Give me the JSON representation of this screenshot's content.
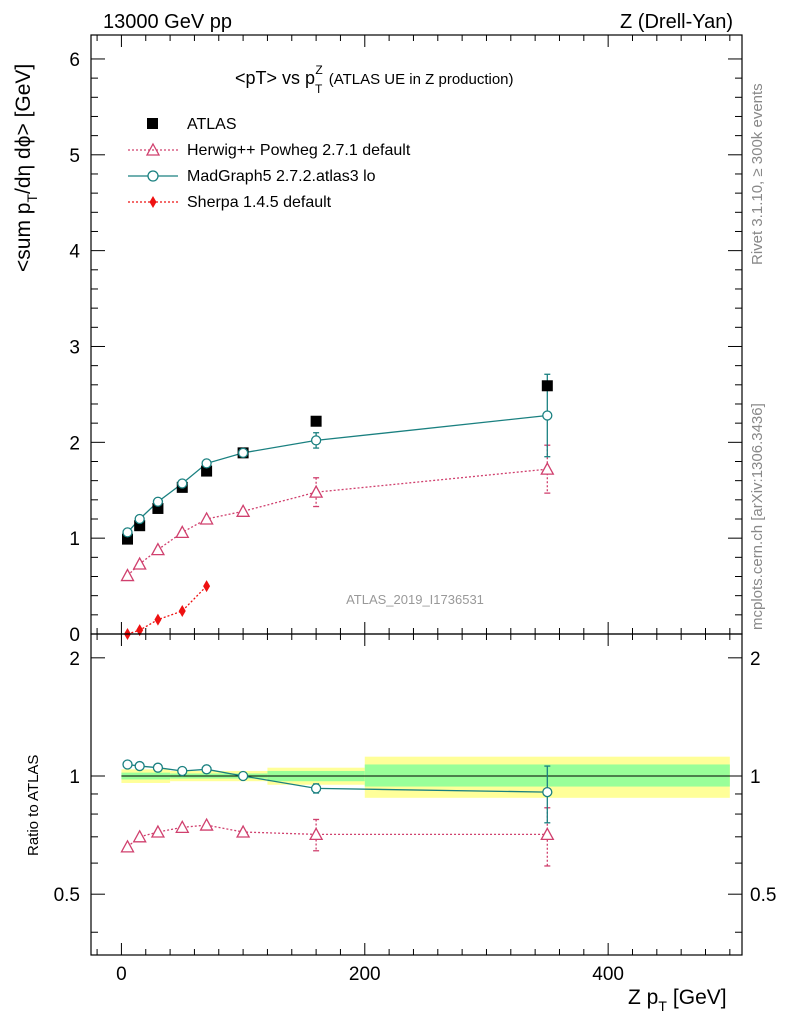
{
  "header": {
    "left": "13000 GeV pp",
    "right": "Z (Drell-Yan)"
  },
  "side_labels": {
    "rivet": "Rivet 3.1.10, ≥ 300k events",
    "mcplots": "mcplots.cern.ch [arXiv:1306.3436]"
  },
  "chart_data": {
    "type": "scatter",
    "title": "<pT> vs p",
    "title_sup": "Z",
    "title_sub": "T",
    "title_rest": "(ATLAS UE in Z production)",
    "ylabel_main": "<sum p",
    "ylabel_sub": "T",
    "ylabel_rest": "/dη dϕ> [GeV]",
    "ylabel_ratio": "Ratio to ATLAS",
    "xlabel": "Z p",
    "xlabel_sub": "T",
    "xlabel_rest": "[GeV]",
    "analysis_id": "ATLAS_2019_I1736531",
    "xlim": [
      -25,
      510
    ],
    "ylim_main": [
      0,
      6.25
    ],
    "ylim_ratio": [
      0.35,
      2.3
    ],
    "x_ticks": [
      "0",
      "200",
      "400"
    ],
    "y_ticks_main": [
      "0",
      "1",
      "2",
      "3",
      "4",
      "5",
      "6"
    ],
    "y_ticks_ratio": [
      "0.5",
      "1",
      "2"
    ],
    "legend": [
      {
        "label": "ATLAS"
      },
      {
        "label": "Herwig++ Powheg 2.7.1 default"
      },
      {
        "label": "MadGraph5 2.7.2.atlas3 lo"
      },
      {
        "label": "Sherpa 1.4.5 default"
      }
    ],
    "series": [
      {
        "name": "ATLAS",
        "color": "#000000",
        "marker": "square",
        "line": "none",
        "x": [
          5,
          15,
          30,
          50,
          70,
          100,
          160,
          350
        ],
        "y": [
          0.99,
          1.13,
          1.31,
          1.53,
          1.7,
          1.89,
          2.22,
          2.59
        ]
      },
      {
        "name": "Herwig++ Powheg 2.7.1 default",
        "color": "#d0406e",
        "marker": "triangle-open",
        "line": "dotted",
        "x": [
          5,
          15,
          30,
          50,
          70,
          100,
          160,
          350
        ],
        "y": [
          0.61,
          0.73,
          0.88,
          1.06,
          1.2,
          1.28,
          1.48,
          1.72
        ],
        "yerr": [
          0,
          0,
          0,
          0,
          0,
          0,
          0.15,
          0.25
        ]
      },
      {
        "name": "MadGraph5 2.7.2.atlas3 lo",
        "color": "#1a8080",
        "marker": "circle-open",
        "line": "solid",
        "x": [
          5,
          15,
          30,
          50,
          70,
          100,
          160,
          350
        ],
        "y": [
          1.06,
          1.2,
          1.38,
          1.57,
          1.78,
          1.89,
          2.02,
          2.28
        ],
        "yerr": [
          0,
          0,
          0,
          0,
          0,
          0,
          0.08,
          0.43
        ]
      },
      {
        "name": "Sherpa 1.4.5 default",
        "color": "#ee1111",
        "marker": "diamond",
        "line": "dotted",
        "x": [
          5,
          15,
          30,
          50,
          70
        ],
        "y": [
          0.0,
          0.04,
          0.15,
          0.24,
          0.5
        ]
      }
    ],
    "ratio_series": [
      {
        "name": "Herwig++ Powheg 2.7.1 default",
        "color": "#d0406e",
        "marker": "triangle-open",
        "line": "dotted",
        "x": [
          5,
          15,
          30,
          50,
          70,
          100,
          160,
          350
        ],
        "y": [
          0.66,
          0.7,
          0.72,
          0.74,
          0.75,
          0.72,
          0.71,
          0.71
        ],
        "yerr": [
          0,
          0,
          0,
          0,
          0,
          0,
          0.065,
          0.12
        ]
      },
      {
        "name": "MadGraph5 2.7.2.atlas3 lo",
        "color": "#1a8080",
        "marker": "circle-open",
        "line": "solid",
        "x": [
          5,
          15,
          30,
          50,
          70,
          100,
          160,
          350
        ],
        "y": [
          1.07,
          1.06,
          1.05,
          1.03,
          1.04,
          1.0,
          0.93,
          0.91
        ],
        "yerr": [
          0,
          0,
          0,
          0,
          0,
          0,
          0.025,
          0.15
        ]
      }
    ],
    "ratio_bands": [
      {
        "x0": 0,
        "x1": 40,
        "yellow": [
          0.96,
          1.04
        ],
        "green": [
          0.98,
          1.02
        ]
      },
      {
        "x0": 40,
        "x1": 120,
        "yellow": [
          0.97,
          1.03
        ],
        "green": [
          0.985,
          1.015
        ]
      },
      {
        "x0": 120,
        "x1": 200,
        "yellow": [
          0.95,
          1.05
        ],
        "green": [
          0.97,
          1.03
        ]
      },
      {
        "x0": 200,
        "x1": 500,
        "yellow": [
          0.88,
          1.12
        ],
        "green": [
          0.94,
          1.07
        ]
      }
    ]
  }
}
